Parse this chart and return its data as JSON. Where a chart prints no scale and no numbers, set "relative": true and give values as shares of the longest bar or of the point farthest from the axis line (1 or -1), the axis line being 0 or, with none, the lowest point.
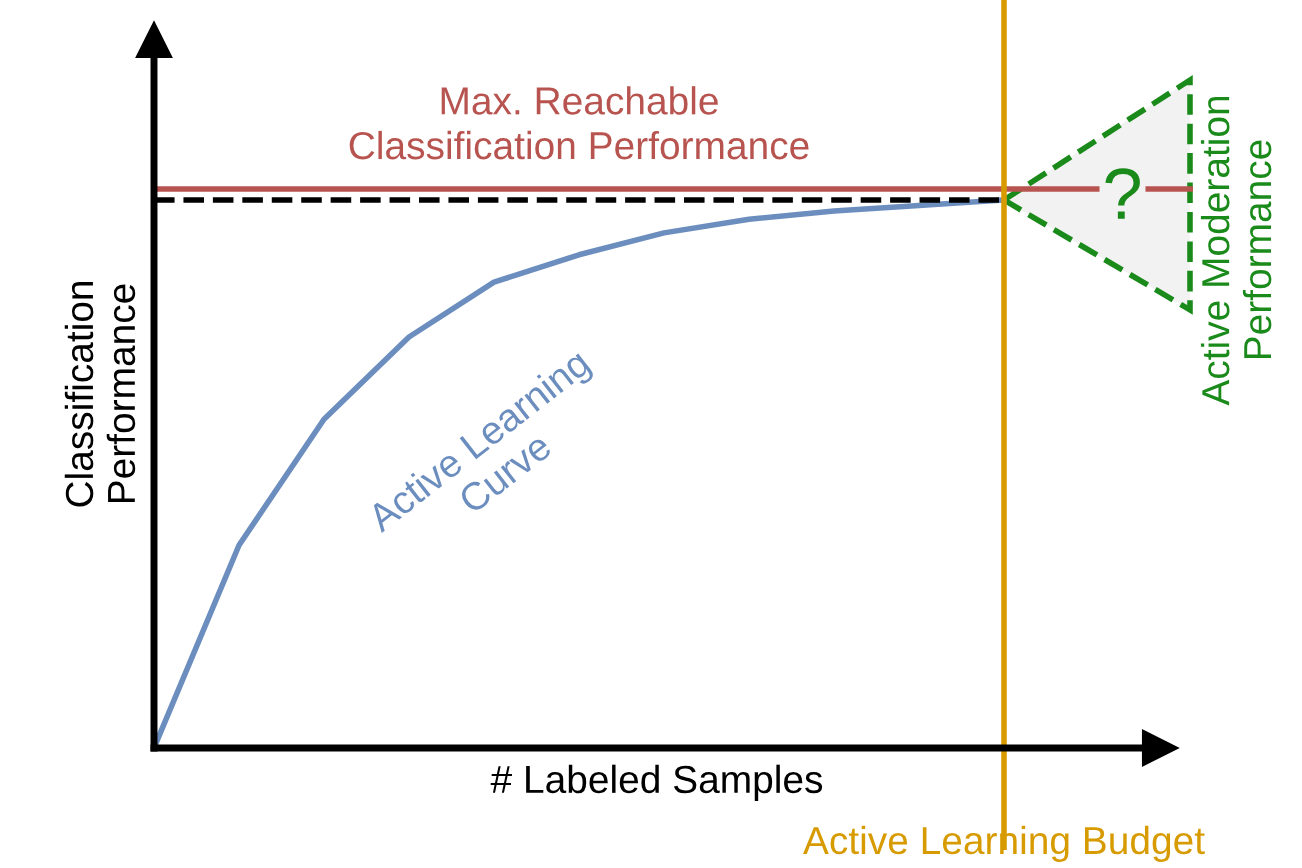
{
  "chart_data": {
    "type": "line",
    "relative": true,
    "xlabel": "# Labeled Samples",
    "ylabel": "Classification\nPerformance",
    "categories": [
      null,
      null,
      null,
      null,
      null,
      null,
      null,
      null,
      null,
      null,
      null
    ],
    "series": [
      {
        "name": "Active Learning\nCurve",
        "color": "#6c8ebf",
        "values": [
          0,
          0.37,
          0.6,
          0.75,
          0.85,
          0.9,
          0.94,
          0.965,
          0.98,
          0.99,
          1
        ]
      }
    ],
    "ref_lines": [
      {
        "axis": "y",
        "value": 1.02,
        "label": "Max. Reachable\nClassification Performance",
        "color": "#b85450",
        "line_style": "solid"
      },
      {
        "axis": "y",
        "value": 1.0,
        "label": null,
        "color": "#000000",
        "line_style": "dashed"
      }
    ],
    "annotations": [
      "?",
      "Active Moderation\nPerformance",
      "Active Learning Budget"
    ],
    "marker": "none",
    "line_style": "solid",
    "legend": false
  }
}
